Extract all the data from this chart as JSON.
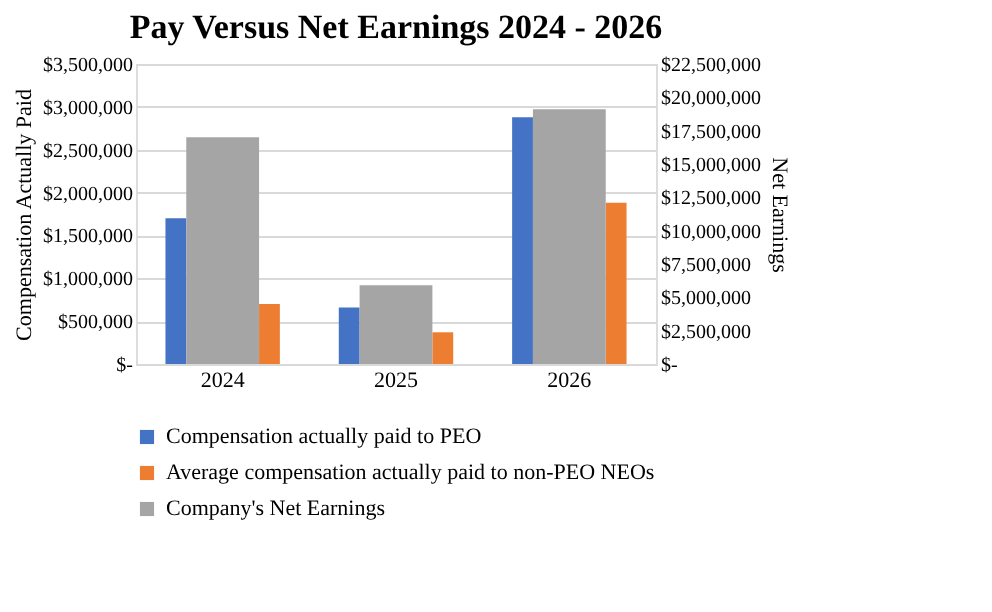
{
  "chart_data": {
    "type": "bar",
    "title": "Pay Versus Net Earnings 2024 - 2026",
    "ylabel": "Compensation Actually Paid",
    "y2label": "Net Earnings",
    "categories": [
      "2024",
      "2025",
      "2026"
    ],
    "series": [
      {
        "name": "Compensation actually paid to PEO",
        "color": "#4472c4",
        "values": [
          1700000,
          660000,
          2880000
        ]
      },
      {
        "name": "Average compensation actually paid to non-PEO NEOs",
        "color": "#ed7d31",
        "values": [
          700000,
          370000,
          1880000
        ]
      },
      {
        "name": "Company's Net Earnings",
        "color": "#a5a5a5",
        "values": [
          17000000,
          5900000,
          19100000
        ],
        "axis": "y2"
      }
    ],
    "ylim": [
      0,
      3500000
    ],
    "yticks": [
      {
        "value": 0,
        "label": "$-"
      },
      {
        "value": 500000,
        "label": "$500,000"
      },
      {
        "value": 1000000,
        "label": "$1,000,000"
      },
      {
        "value": 1500000,
        "label": "$1,500,000"
      },
      {
        "value": 2000000,
        "label": "$2,000,000"
      },
      {
        "value": 2500000,
        "label": "$2,500,000"
      },
      {
        "value": 3000000,
        "label": "$3,000,000"
      },
      {
        "value": 3500000,
        "label": "$3,500,000"
      }
    ],
    "y2lim": [
      0,
      22500000
    ],
    "y2ticks": [
      {
        "value": 0,
        "label": "$-"
      },
      {
        "value": 2500000,
        "label": "$2,500,000"
      },
      {
        "value": 5000000,
        "label": "$5,000,000"
      },
      {
        "value": 7500000,
        "label": "$7,500,000"
      },
      {
        "value": 10000000,
        "label": "$10,000,000"
      },
      {
        "value": 12500000,
        "label": "$12,500,000"
      },
      {
        "value": 15000000,
        "label": "$15,000,000"
      },
      {
        "value": 17500000,
        "label": "$17,500,000"
      },
      {
        "value": 20000000,
        "label": "$20,000,000"
      },
      {
        "value": 22500000,
        "label": "$22,500,000"
      }
    ],
    "grid": "y",
    "legend": "bottom"
  }
}
